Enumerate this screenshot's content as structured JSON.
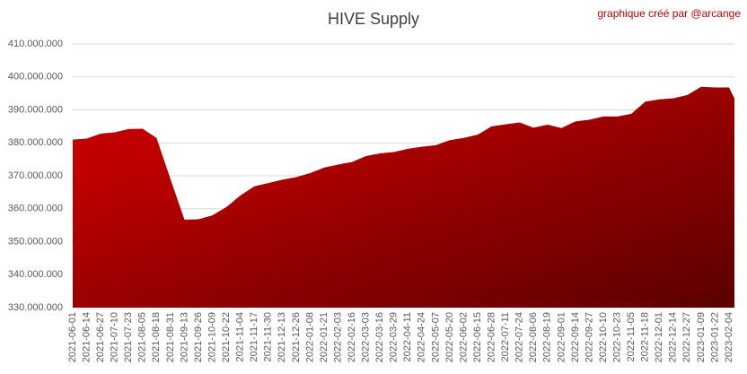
{
  "chart_data": {
    "type": "area",
    "title": "HIVE Supply",
    "annotation": "graphique créé par @arcange",
    "color": "#c00000",
    "grid": true,
    "categories": [
      "2021-06-01",
      "2021-06-14",
      "2021-06-27",
      "2021-07-10",
      "2021-07-23",
      "2021-08-05",
      "2021-08-18",
      "2021-08-31",
      "2021-09-13",
      "2021-09-26",
      "2021-10-09",
      "2021-10-22",
      "2021-11-04",
      "2021-11-17",
      "2021-11-30",
      "2021-12-13",
      "2021-12-26",
      "2022-01-08",
      "2022-01-21",
      "2022-02-03",
      "2022-02-16",
      "2022-03-03",
      "2022-03-16",
      "2022-03-29",
      "2022-04-11",
      "2022-04-24",
      "2022-05-07",
      "2022-05-20",
      "2022-06-02",
      "2022-06-15",
      "2022-06-28",
      "2022-07-11",
      "2022-07-24",
      "2022-08-06",
      "2022-08-19",
      "2022-09-01",
      "2022-09-14",
      "2022-09-27",
      "2022-10-10",
      "2022-10-23",
      "2022-11-05",
      "2022-11-18",
      "2022-12-01",
      "2022-12-14",
      "2022-12-27",
      "2023-01-09",
      "2023-01-22",
      "2023-02-04",
      null
    ],
    "values": [
      381000000,
      381300000,
      382800000,
      383200000,
      384200000,
      384300000,
      381500000,
      369000000,
      356700000,
      356800000,
      358000000,
      360500000,
      364000000,
      366800000,
      367800000,
      368800000,
      369600000,
      370800000,
      372500000,
      373400000,
      374200000,
      376000000,
      376800000,
      377200000,
      378200000,
      378800000,
      379300000,
      380800000,
      381500000,
      382500000,
      385000000,
      385600000,
      386200000,
      384600000,
      385500000,
      384500000,
      386500000,
      387000000,
      388000000,
      388000000,
      388800000,
      392500000,
      393200000,
      393500000,
      394500000,
      397000000,
      396800000,
      396800000,
      393500000
    ],
    "ylim": [
      330000000,
      410000000
    ],
    "yticks": [
      {
        "value": 330000000,
        "label": "330.000.000"
      },
      {
        "value": 340000000,
        "label": "340.000.000"
      },
      {
        "value": 350000000,
        "label": "350.000.000"
      },
      {
        "value": 360000000,
        "label": "360.000.000"
      },
      {
        "value": 370000000,
        "label": "370.000.000"
      },
      {
        "value": 380000000,
        "label": "380.000.000"
      },
      {
        "value": 390000000,
        "label": "390.000.000"
      },
      {
        "value": 400000000,
        "label": "400.000.000"
      },
      {
        "value": 410000000,
        "label": "410.000.000"
      }
    ]
  }
}
